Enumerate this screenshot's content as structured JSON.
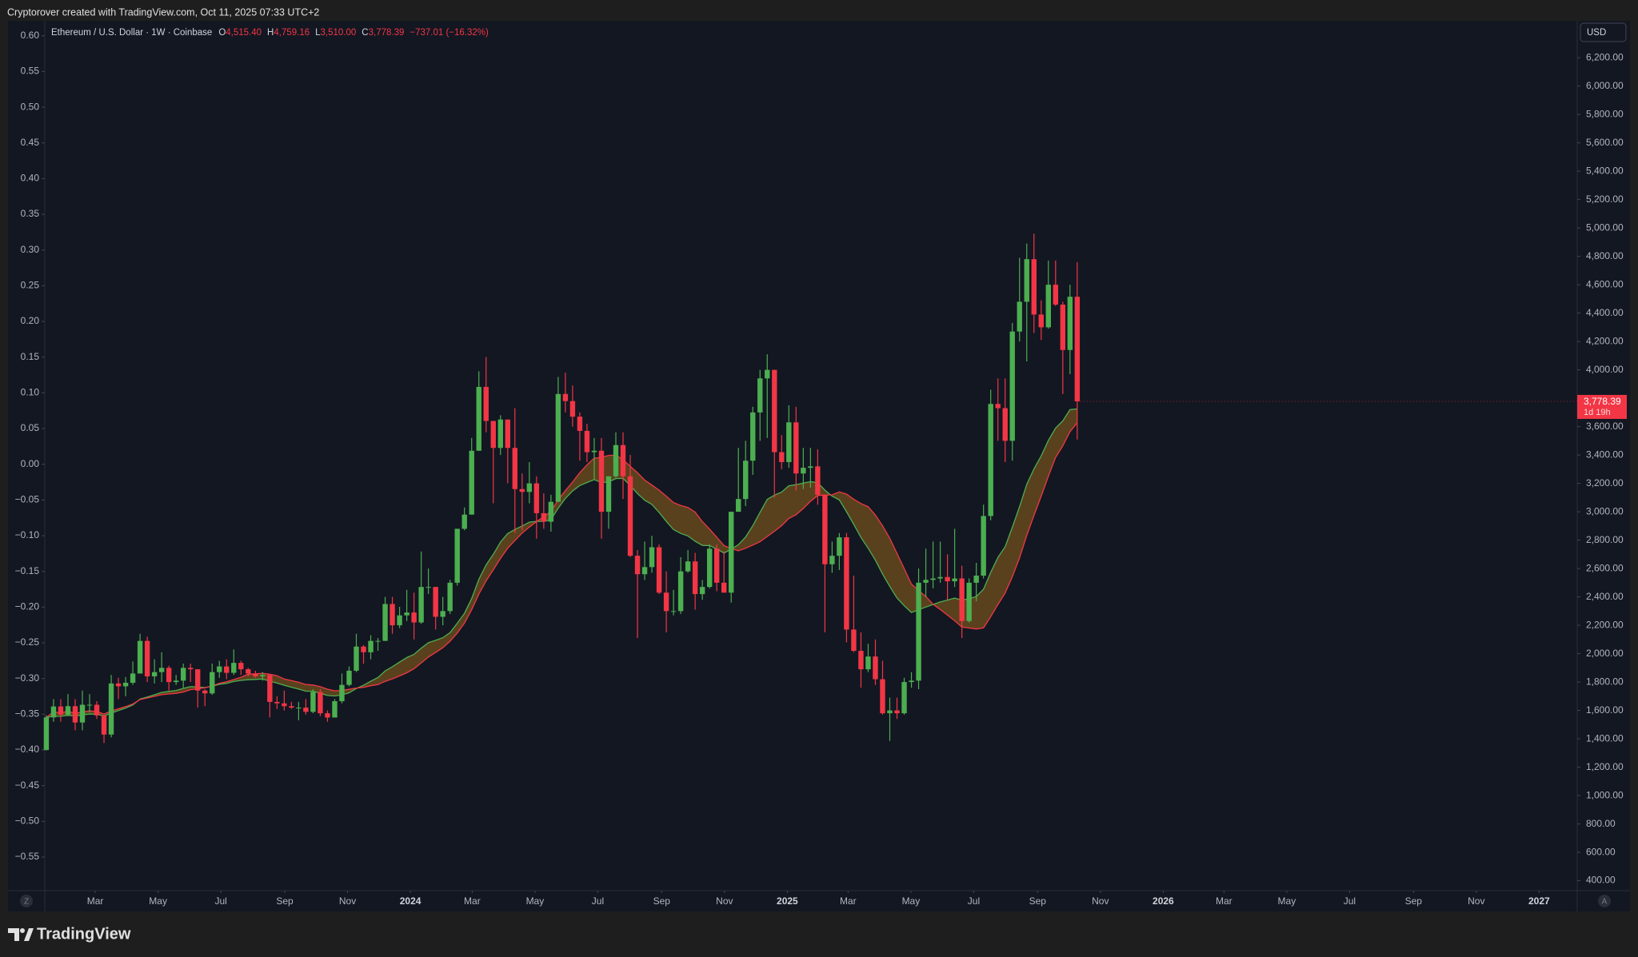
{
  "header": {
    "caption": "Cryptorover created with TradingView.com, Oct 11, 2025 07:33 UTC+2"
  },
  "chart_data": {
    "type": "candlestick",
    "title": "Ethereum / U.S. Dollar · 1W · Coinbase",
    "legend_ohlc": [
      {
        "label": "O",
        "value": "4,515.40"
      },
      {
        "label": "H",
        "value": "4,759.16"
      },
      {
        "label": "L",
        "value": "3,510.00"
      },
      {
        "label": "C",
        "value": "3,778.39"
      }
    ],
    "change": "−737.01 (−16.32%)",
    "currency": "USD",
    "last_price_label": "3,778.39",
    "countdown": "1d 19h",
    "up_color": "#4caf50",
    "down_color": "#f23645",
    "ohlc": [
      [
        1321,
        1565,
        1318,
        1551
      ],
      [
        1551,
        1680,
        1520,
        1628
      ],
      [
        1628,
        1680,
        1520,
        1570
      ],
      [
        1570,
        1715,
        1560,
        1630
      ],
      [
        1630,
        1680,
        1460,
        1515
      ],
      [
        1515,
        1740,
        1460,
        1640
      ],
      [
        1640,
        1715,
        1585,
        1640
      ],
      [
        1640,
        1665,
        1540,
        1565
      ],
      [
        1565,
        1570,
        1370,
        1430
      ],
      [
        1430,
        1850,
        1410,
        1790
      ],
      [
        1790,
        1830,
        1680,
        1770
      ],
      [
        1770,
        1835,
        1700,
        1795
      ],
      [
        1795,
        1945,
        1780,
        1860
      ],
      [
        1860,
        2140,
        1860,
        2090
      ],
      [
        2090,
        2120,
        1800,
        1840
      ],
      [
        1840,
        1960,
        1790,
        1870
      ],
      [
        1870,
        2010,
        1800,
        1900
      ],
      [
        1900,
        1915,
        1740,
        1800
      ],
      [
        1800,
        1850,
        1780,
        1810
      ],
      [
        1810,
        1930,
        1760,
        1900
      ],
      [
        1900,
        1930,
        1800,
        1890
      ],
      [
        1890,
        1890,
        1620,
        1740
      ],
      [
        1740,
        1750,
        1630,
        1720
      ],
      [
        1720,
        1930,
        1710,
        1870
      ],
      [
        1870,
        1950,
        1830,
        1910
      ],
      [
        1910,
        1960,
        1820,
        1865
      ],
      [
        1865,
        2030,
        1850,
        1935
      ],
      [
        1935,
        1950,
        1850,
        1890
      ],
      [
        1890,
        1900,
        1840,
        1860
      ],
      [
        1860,
        1880,
        1830,
        1840
      ],
      [
        1840,
        1870,
        1810,
        1850
      ],
      [
        1850,
        1850,
        1550,
        1660
      ],
      [
        1660,
        1700,
        1610,
        1650
      ],
      [
        1650,
        1740,
        1600,
        1630
      ],
      [
        1630,
        1660,
        1610,
        1620
      ],
      [
        1620,
        1660,
        1530,
        1620
      ],
      [
        1620,
        1680,
        1570,
        1590
      ],
      [
        1590,
        1750,
        1580,
        1730
      ],
      [
        1730,
        1750,
        1560,
        1580
      ],
      [
        1580,
        1600,
        1520,
        1550
      ],
      [
        1550,
        1680,
        1550,
        1665
      ],
      [
        1665,
        1860,
        1650,
        1780
      ],
      [
        1780,
        1910,
        1770,
        1880
      ],
      [
        1880,
        2140,
        1870,
        2050
      ],
      [
        2050,
        2060,
        1930,
        2010
      ],
      [
        2010,
        2130,
        1960,
        2090
      ],
      [
        2090,
        2110,
        2020,
        2090
      ],
      [
        2090,
        2400,
        2090,
        2350
      ],
      [
        2350,
        2400,
        2140,
        2200
      ],
      [
        2200,
        2330,
        2180,
        2270
      ],
      [
        2270,
        2450,
        2230,
        2290
      ],
      [
        2290,
        2430,
        2100,
        2220
      ],
      [
        2220,
        2720,
        2210,
        2470
      ],
      [
        2470,
        2600,
        2420,
        2470
      ],
      [
        2470,
        2470,
        2170,
        2260
      ],
      [
        2260,
        2400,
        2200,
        2300
      ],
      [
        2300,
        2520,
        2280,
        2500
      ],
      [
        2500,
        2880,
        2480,
        2880
      ],
      [
        2880,
        3030,
        2870,
        2980
      ],
      [
        2980,
        3520,
        2980,
        3430
      ],
      [
        3430,
        3990,
        3430,
        3880
      ],
      [
        3880,
        4090,
        3560,
        3640
      ],
      [
        3640,
        3640,
        3060,
        3450
      ],
      [
        3450,
        3680,
        3400,
        3650
      ],
      [
        3650,
        3650,
        3200,
        3450
      ],
      [
        3450,
        3730,
        2850,
        3160
      ],
      [
        3160,
        3270,
        2870,
        3140
      ],
      [
        3140,
        3350,
        3060,
        3200
      ],
      [
        3200,
        3250,
        2810,
        2990
      ],
      [
        2990,
        3130,
        2880,
        2930
      ],
      [
        2930,
        3120,
        2860,
        3070
      ],
      [
        3070,
        3950,
        3070,
        3830
      ],
      [
        3830,
        3980,
        3700,
        3780
      ],
      [
        3780,
        3890,
        3600,
        3670
      ],
      [
        3670,
        3700,
        3360,
        3570
      ],
      [
        3570,
        3620,
        3350,
        3420
      ],
      [
        3420,
        3520,
        3230,
        3430
      ],
      [
        3430,
        3520,
        2810,
        3000
      ],
      [
        3000,
        3250,
        2880,
        3250
      ],
      [
        3250,
        3560,
        3240,
        3470
      ],
      [
        3470,
        3560,
        3090,
        3250
      ],
      [
        3250,
        3400,
        2680,
        2690
      ],
      [
        2690,
        2730,
        2110,
        2560
      ],
      [
        2560,
        2790,
        2520,
        2610
      ],
      [
        2610,
        2830,
        2570,
        2750
      ],
      [
        2750,
        2770,
        2420,
        2430
      ],
      [
        2430,
        2580,
        2150,
        2300
      ],
      [
        2300,
        2450,
        2270,
        2300
      ],
      [
        2300,
        2680,
        2280,
        2580
      ],
      [
        2580,
        2730,
        2570,
        2650
      ],
      [
        2650,
        2710,
        2310,
        2420
      ],
      [
        2420,
        2520,
        2380,
        2470
      ],
      [
        2470,
        2770,
        2460,
        2740
      ],
      [
        2740,
        2770,
        2440,
        2500
      ],
      [
        2500,
        2720,
        2430,
        2430
      ],
      [
        2430,
        3000,
        2360,
        3000
      ],
      [
        3000,
        3450,
        3000,
        3090
      ],
      [
        3090,
        3500,
        3040,
        3360
      ],
      [
        3360,
        3740,
        3260,
        3700
      ],
      [
        3700,
        4000,
        3500,
        3940
      ],
      [
        3940,
        4110,
        3520,
        4000
      ],
      [
        4000,
        4000,
        3100,
        3420
      ],
      [
        3420,
        3540,
        3300,
        3350
      ],
      [
        3350,
        3750,
        3310,
        3630
      ],
      [
        3630,
        3740,
        3150,
        3270
      ],
      [
        3270,
        3450,
        3160,
        3310
      ],
      [
        3310,
        3450,
        3170,
        3320
      ],
      [
        3320,
        3440,
        3050,
        3120
      ],
      [
        3120,
        3120,
        2150,
        2630
      ],
      [
        2630,
        2790,
        2570,
        2690
      ],
      [
        2690,
        2850,
        2590,
        2820
      ],
      [
        2820,
        2850,
        2080,
        2170
      ],
      [
        2170,
        2550,
        2010,
        2020
      ],
      [
        2020,
        2150,
        1760,
        1890
      ],
      [
        1890,
        2070,
        1870,
        1980
      ],
      [
        1980,
        2100,
        1780,
        1820
      ],
      [
        1820,
        1950,
        1570,
        1580
      ],
      [
        1580,
        1690,
        1385,
        1600
      ],
      [
        1600,
        1690,
        1540,
        1580
      ],
      [
        1580,
        1830,
        1570,
        1800
      ],
      [
        1800,
        1870,
        1760,
        1810
      ],
      [
        1810,
        2600,
        1750,
        2500
      ],
      [
        2500,
        2740,
        2400,
        2520
      ],
      [
        2520,
        2790,
        2460,
        2530
      ],
      [
        2530,
        2790,
        2500,
        2540
      ],
      [
        2540,
        2700,
        2380,
        2510
      ],
      [
        2510,
        2880,
        2470,
        2530
      ],
      [
        2530,
        2620,
        2110,
        2230
      ],
      [
        2230,
        2530,
        2220,
        2500
      ],
      [
        2500,
        2640,
        2370,
        2550
      ],
      [
        2550,
        3050,
        2530,
        2970
      ],
      [
        2970,
        3860,
        2940,
        3760
      ],
      [
        3760,
        3940,
        3500,
        3730
      ],
      [
        3730,
        3940,
        3350,
        3500
      ],
      [
        3500,
        4330,
        3360,
        4270
      ],
      [
        4270,
        4790,
        4200,
        4480
      ],
      [
        4480,
        4890,
        4060,
        4780
      ],
      [
        4780,
        4960,
        4260,
        4390
      ],
      [
        4390,
        4490,
        4210,
        4300
      ],
      [
        4300,
        4770,
        4290,
        4600
      ],
      [
        4600,
        4770,
        4450,
        4460
      ],
      [
        4460,
        4480,
        3830,
        4140
      ],
      [
        4140,
        4600,
        3970,
        4515.4
      ],
      [
        4515.4,
        4759.16,
        3510,
        3778.39
      ]
    ],
    "ylim": [
      330,
      6460
    ],
    "yticks": [
      {
        "value": 400,
        "label": "400.00"
      },
      {
        "value": 600,
        "label": "600.00"
      },
      {
        "value": 800,
        "label": "800.00"
      },
      {
        "value": 1000,
        "label": "1,000.00"
      },
      {
        "value": 1200,
        "label": "1,200.00"
      },
      {
        "value": 1400,
        "label": "1,400.00"
      },
      {
        "value": 1600,
        "label": "1,600.00"
      },
      {
        "value": 1800,
        "label": "1,800.00"
      },
      {
        "value": 2000,
        "label": "2,000.00"
      },
      {
        "value": 2200,
        "label": "2,200.00"
      },
      {
        "value": 2400,
        "label": "2,400.00"
      },
      {
        "value": 2600,
        "label": "2,600.00"
      },
      {
        "value": 2800,
        "label": "2,800.00"
      },
      {
        "value": 3000,
        "label": "3,000.00"
      },
      {
        "value": 3200,
        "label": "3,200.00"
      },
      {
        "value": 3400,
        "label": "3,400.00"
      },
      {
        "value": 3600,
        "label": "3,600.00"
      },
      {
        "value": 4000,
        "label": "4,000.00"
      },
      {
        "value": 4200,
        "label": "4,200.00"
      },
      {
        "value": 4400,
        "label": "4,400.00"
      },
      {
        "value": 4600,
        "label": "4,600.00"
      },
      {
        "value": 4800,
        "label": "4,800.00"
      },
      {
        "value": 5000,
        "label": "5,000.00"
      },
      {
        "value": 5200,
        "label": "5,200.00"
      },
      {
        "value": 5400,
        "label": "5,400.00"
      },
      {
        "value": 5600,
        "label": "5,600.00"
      },
      {
        "value": 5800,
        "label": "5,800.00"
      },
      {
        "value": 6000,
        "label": "6,000.00"
      },
      {
        "value": 6200,
        "label": "6,200.00"
      }
    ],
    "y2lim": [
      -0.597,
      0.621
    ],
    "y2ticks": [
      {
        "value": -0.55,
        "label": "−0.55"
      },
      {
        "value": -0.5,
        "label": "−0.50"
      },
      {
        "value": -0.45,
        "label": "−0.45"
      },
      {
        "value": -0.4,
        "label": "−0.40"
      },
      {
        "value": -0.35,
        "label": "−0.35"
      },
      {
        "value": -0.3,
        "label": "−0.30"
      },
      {
        "value": -0.25,
        "label": "−0.25"
      },
      {
        "value": -0.2,
        "label": "−0.20"
      },
      {
        "value": -0.15,
        "label": "−0.15"
      },
      {
        "value": -0.1,
        "label": "−0.10"
      },
      {
        "value": -0.05,
        "label": "−0.05"
      },
      {
        "value": 0,
        "label": "0.00"
      },
      {
        "value": 0.05,
        "label": "0.05"
      },
      {
        "value": 0.1,
        "label": "0.10"
      },
      {
        "value": 0.15,
        "label": "0.15"
      },
      {
        "value": 0.2,
        "label": "0.20"
      },
      {
        "value": 0.25,
        "label": "0.25"
      },
      {
        "value": 0.3,
        "label": "0.30"
      },
      {
        "value": 0.35,
        "label": "0.35"
      },
      {
        "value": 0.4,
        "label": "0.40"
      },
      {
        "value": 0.45,
        "label": "0.45"
      },
      {
        "value": 0.5,
        "label": "0.50"
      },
      {
        "value": 0.55,
        "label": "0.55"
      },
      {
        "value": 0.6,
        "label": "0.60"
      }
    ],
    "xlim": [
      "2023-01-11",
      "2027-02-07"
    ],
    "xticks": [
      {
        "value": "2023-03",
        "label": "Mar"
      },
      {
        "value": "2023-05",
        "label": "May"
      },
      {
        "value": "2023-07",
        "label": "Jul"
      },
      {
        "value": "2023-09",
        "label": "Sep"
      },
      {
        "value": "2023-11",
        "label": "Nov"
      },
      {
        "value": "2024-01",
        "label": "2024"
      },
      {
        "value": "2024-03",
        "label": "Mar"
      },
      {
        "value": "2024-05",
        "label": "May"
      },
      {
        "value": "2024-07",
        "label": "Jul"
      },
      {
        "value": "2024-09",
        "label": "Sep"
      },
      {
        "value": "2024-11",
        "label": "Nov"
      },
      {
        "value": "2025-01",
        "label": "2025"
      },
      {
        "value": "2025-03",
        "label": "Mar"
      },
      {
        "value": "2025-05",
        "label": "May"
      },
      {
        "value": "2025-07",
        "label": "Jul"
      },
      {
        "value": "2025-09",
        "label": "Sep"
      },
      {
        "value": "2025-11",
        "label": "Nov"
      },
      {
        "value": "2026-01",
        "label": "2026"
      },
      {
        "value": "2026-03",
        "label": "Mar"
      },
      {
        "value": "2026-05",
        "label": "May"
      },
      {
        "value": "2026-07",
        "label": "Jul"
      },
      {
        "value": "2026-09",
        "label": "Sep"
      },
      {
        "value": "2026-11",
        "label": "Nov"
      },
      {
        "value": "2027-01",
        "label": "2027"
      }
    ],
    "grid": false
  },
  "footer": {
    "brand": "TradingView",
    "left_button": "Z",
    "right_button": "A"
  }
}
